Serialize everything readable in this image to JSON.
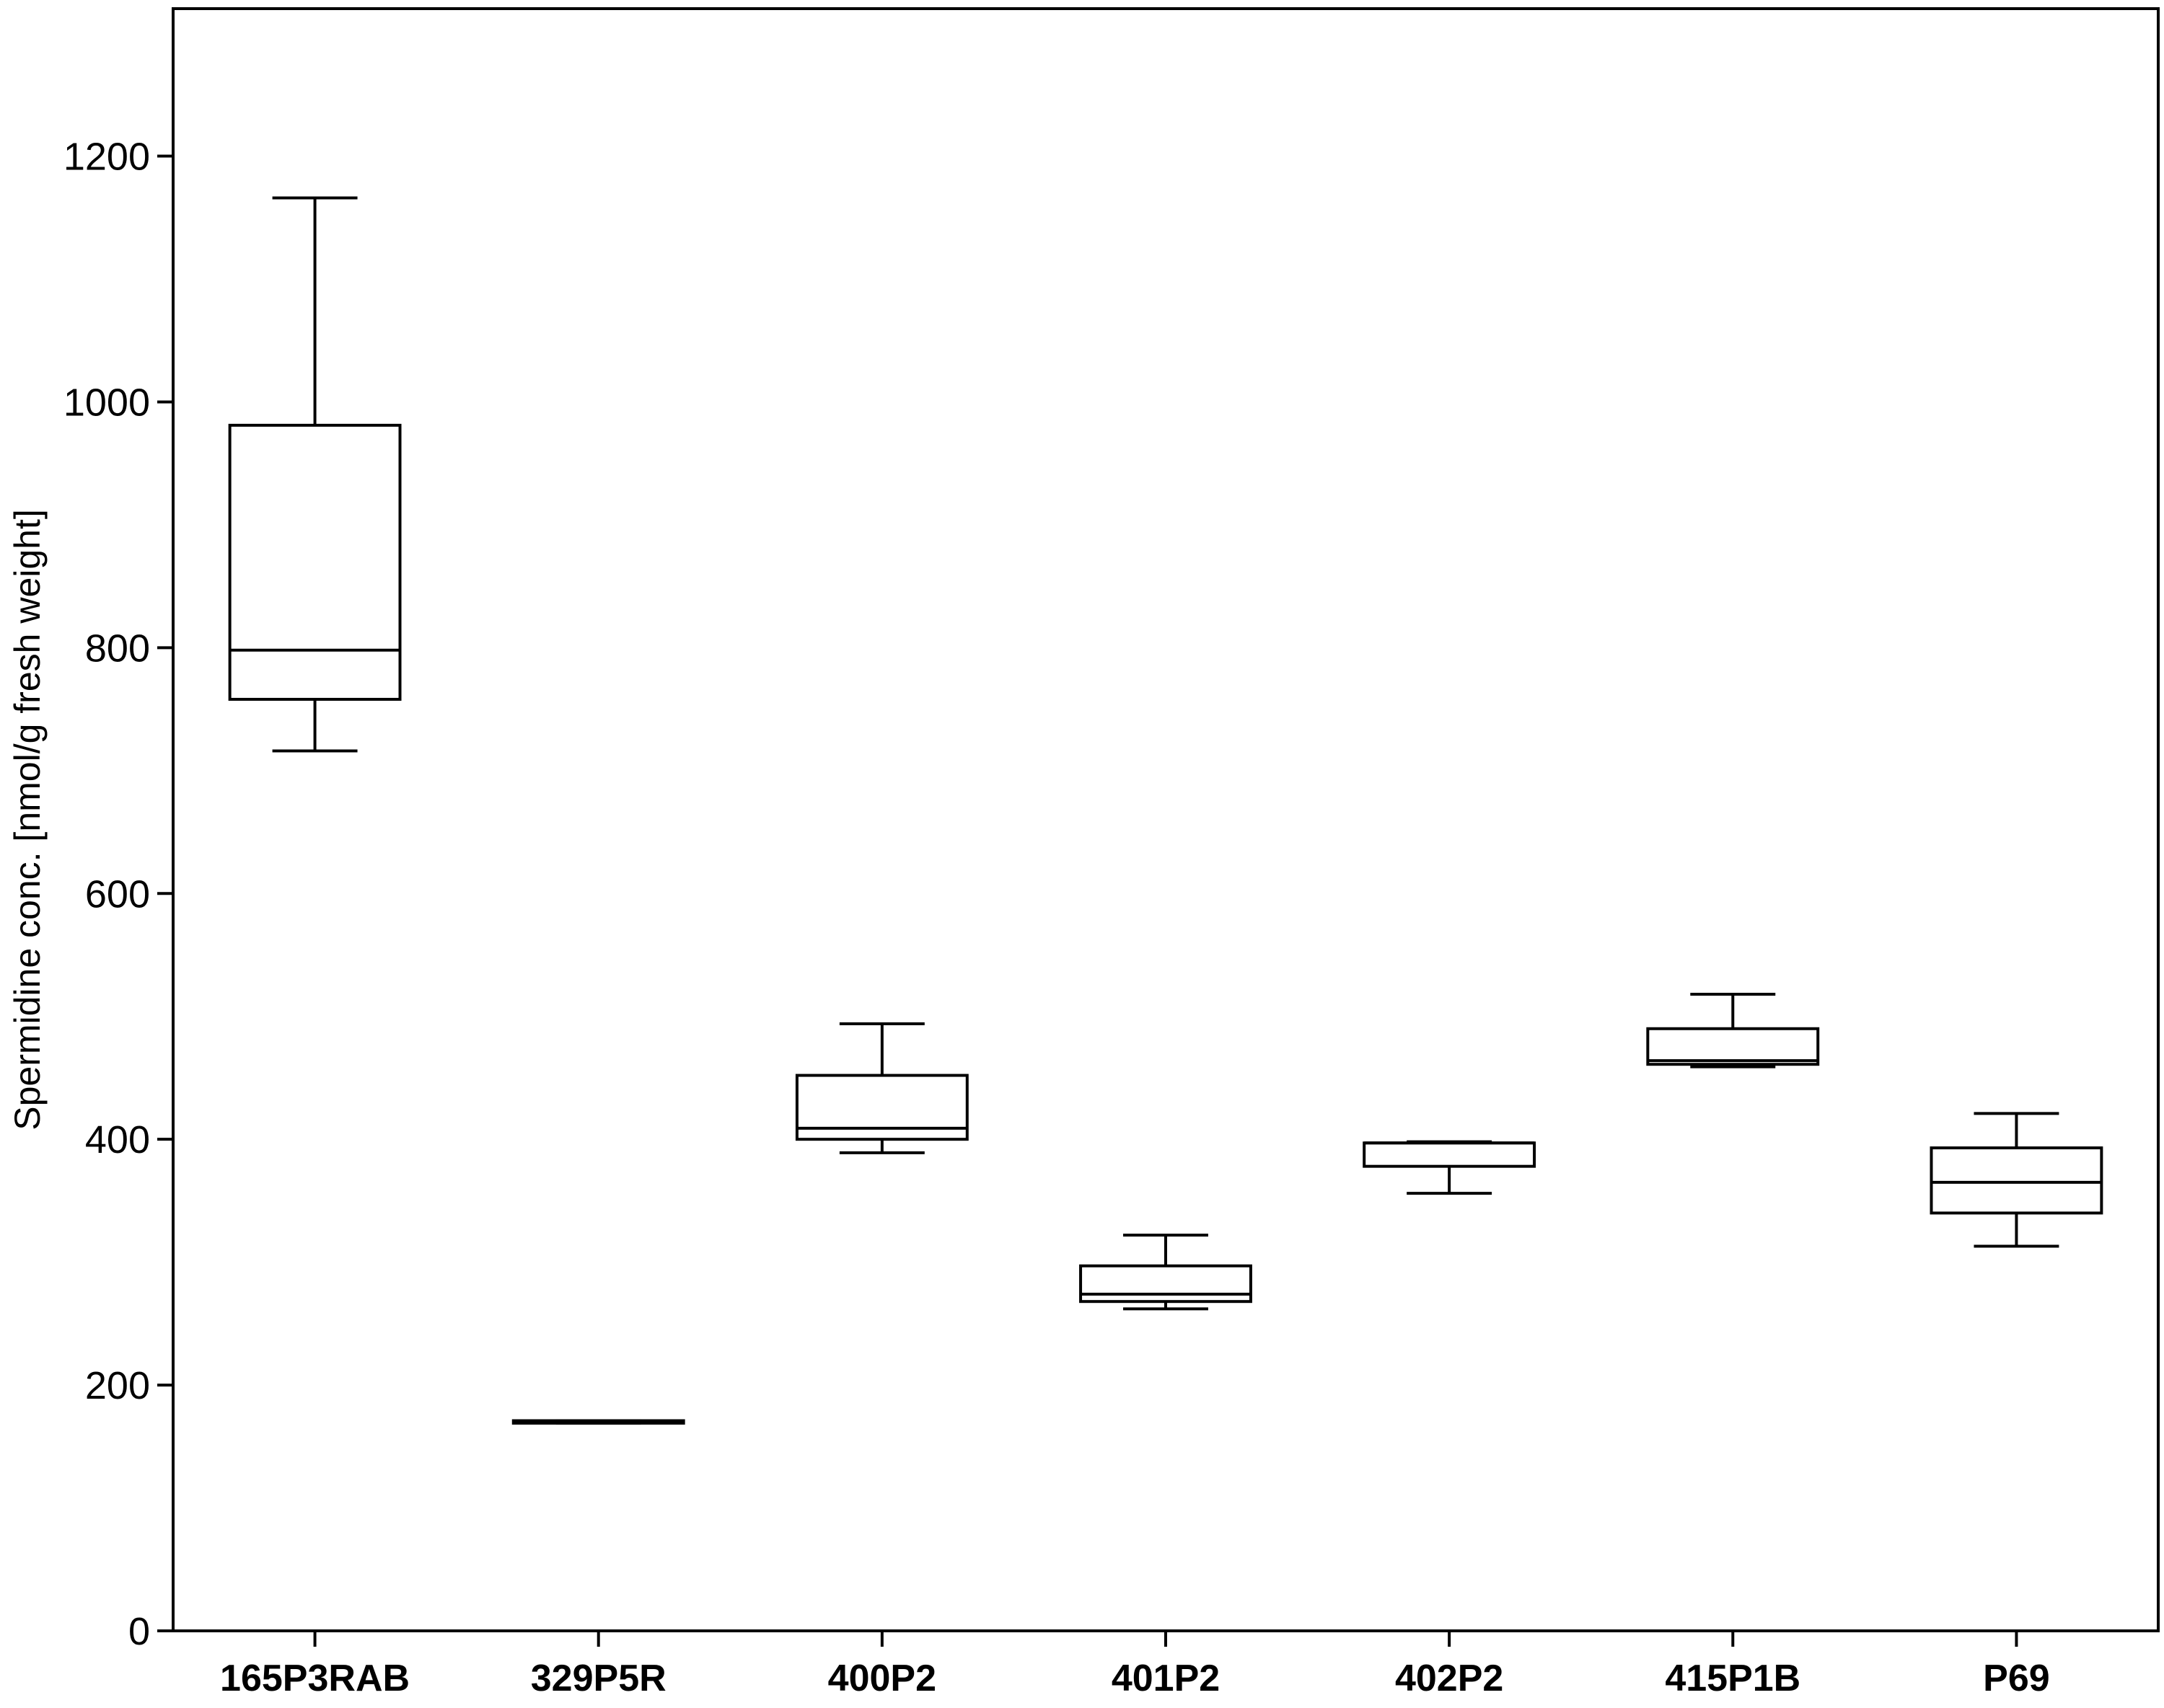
{
  "chart_data": {
    "type": "boxplot",
    "ylabel": "Spermidine conc. [nmol/g fresh weight]",
    "xlabel": "",
    "ylim": [
      0,
      1320
    ],
    "yticks": [
      0,
      200,
      400,
      600,
      800,
      1000,
      1200
    ],
    "grid": false,
    "categories": [
      "165P3RAB",
      "329P5R",
      "400P2",
      "401P2",
      "402P2",
      "415P1B",
      "P69"
    ],
    "boxes": [
      {
        "category": "165P3RAB",
        "min": 716,
        "q1": 758,
        "median": 798,
        "q3": 981,
        "max": 1166
      },
      {
        "category": "329P5R",
        "min": 169,
        "q1": 169,
        "median": 170,
        "q3": 171,
        "max": 171
      },
      {
        "category": "400P2",
        "min": 389,
        "q1": 400,
        "median": 409,
        "q3": 452,
        "max": 494
      },
      {
        "category": "401P2",
        "min": 262,
        "q1": 268,
        "median": 274,
        "q3": 297,
        "max": 322
      },
      {
        "category": "402P2",
        "min": 356,
        "q1": 378,
        "median": 397,
        "q3": 397,
        "max": 398
      },
      {
        "category": "415P1B",
        "min": 459,
        "q1": 461,
        "median": 464,
        "q3": 490,
        "max": 518
      },
      {
        "category": "P69",
        "min": 313,
        "q1": 340,
        "median": 365,
        "q3": 393,
        "max": 421
      }
    ]
  }
}
